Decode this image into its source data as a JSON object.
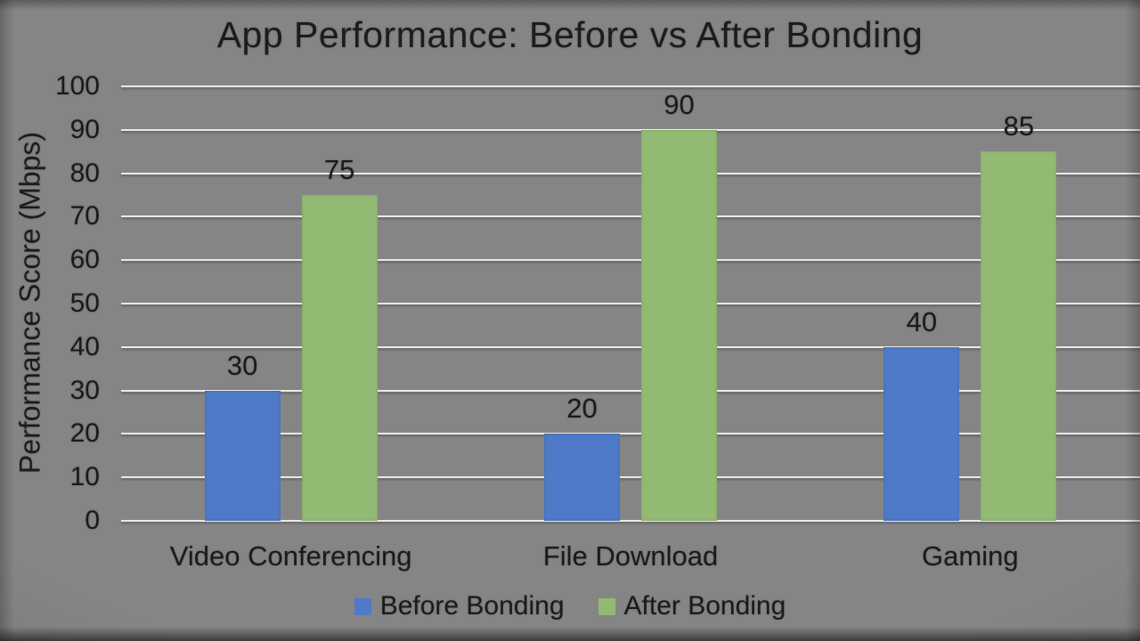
{
  "chart_data": {
    "type": "bar",
    "title": "App Performance: Before vs After Bonding",
    "xlabel": "",
    "ylabel": "Performance Score (Mbps)",
    "ylim": [
      0,
      100
    ],
    "yticks": [
      0,
      10,
      20,
      30,
      40,
      50,
      60,
      70,
      80,
      90,
      100
    ],
    "grid": true,
    "data_labels": true,
    "legend_position": "bottom",
    "categories": [
      "Video Conferencing",
      "File Download",
      "Gaming"
    ],
    "series": [
      {
        "name": "Before Bonding",
        "color": "#4e7ac7",
        "values": [
          30,
          20,
          40
        ]
      },
      {
        "name": "After Bonding",
        "color": "#93ba73",
        "values": [
          75,
          90,
          85
        ]
      }
    ],
    "colors": {
      "background": "#858585",
      "gridline": "#e9e9e9",
      "text": "#1a1a1a"
    }
  }
}
